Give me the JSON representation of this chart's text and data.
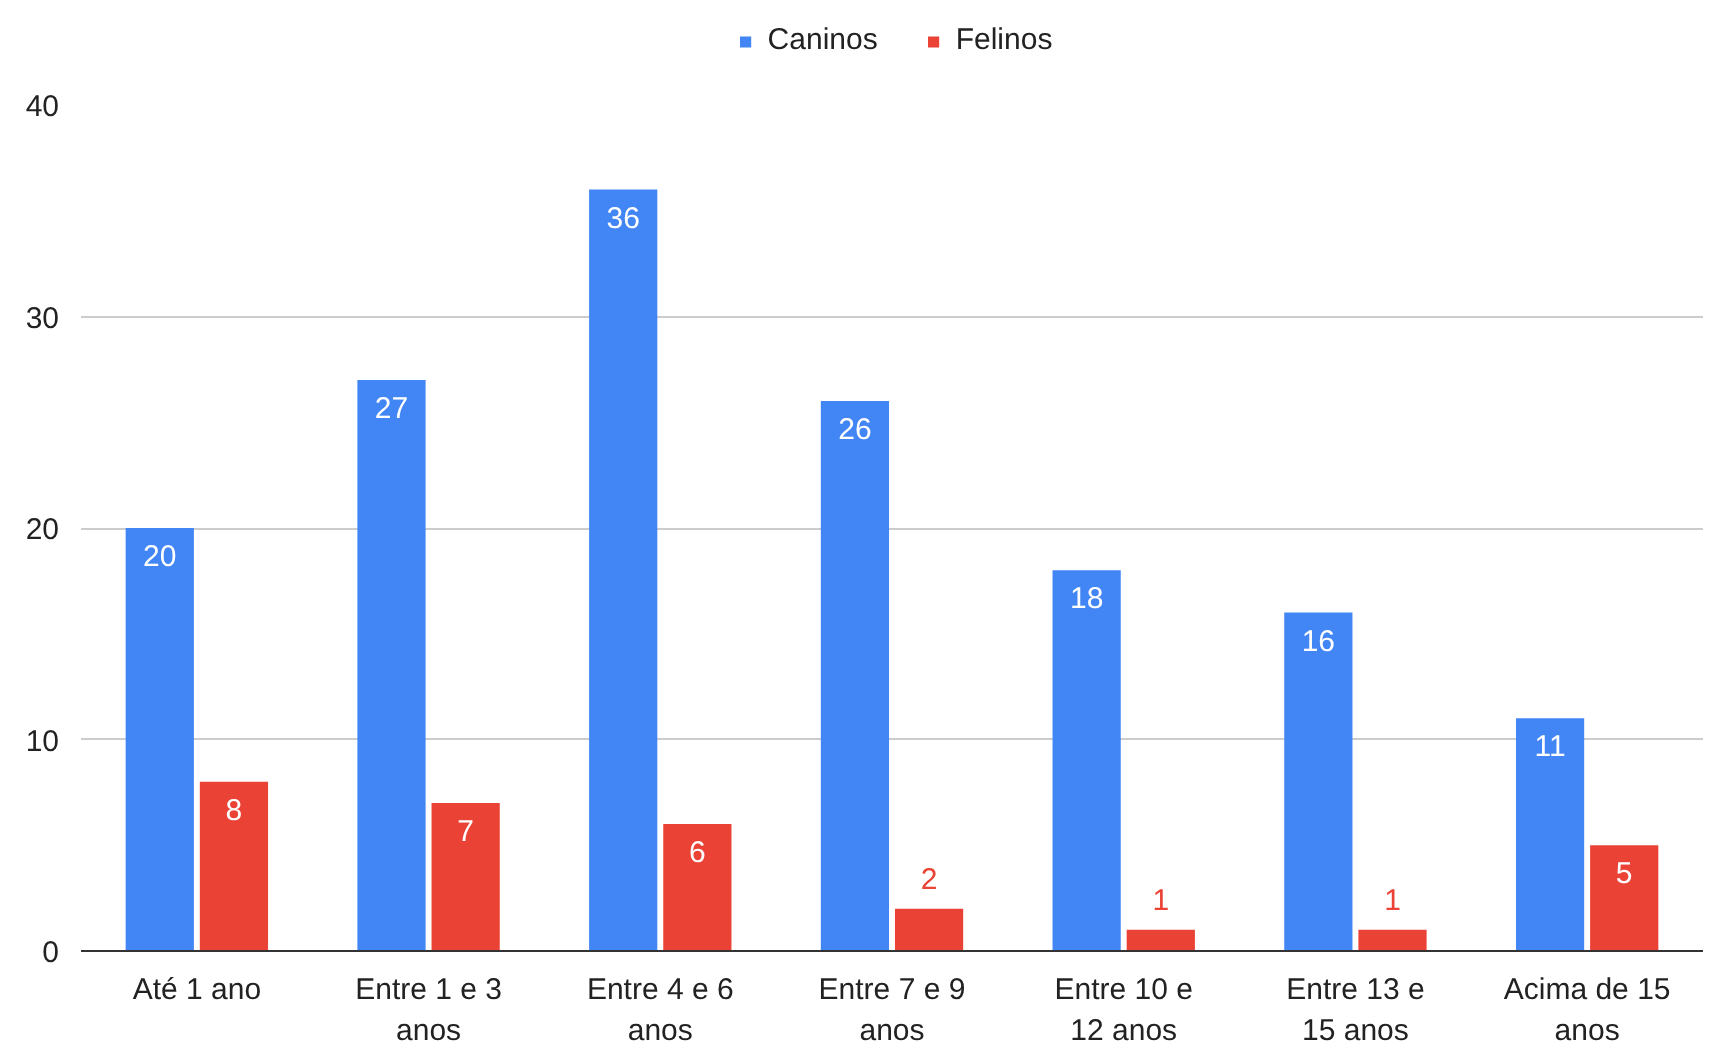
{
  "chart_data": {
    "type": "bar",
    "categories": [
      "Até 1 ano",
      "Entre 1 e 3 anos",
      "Entre 4 e 6 anos",
      "Entre 7 e 9 anos",
      "Entre 10 e 12 anos",
      "Entre 13 e 15 anos",
      "Acima de 15 anos"
    ],
    "series": [
      {
        "name": "Caninos",
        "color": "#4285f4",
        "values": [
          20,
          27,
          36,
          26,
          18,
          16,
          11
        ]
      },
      {
        "name": "Felinos",
        "color": "#ea4335",
        "values": [
          8,
          7,
          6,
          2,
          1,
          1,
          5
        ]
      }
    ],
    "ylim": [
      0,
      40
    ],
    "yticks": [
      0,
      10,
      20,
      30,
      40
    ],
    "grid": "y",
    "legend": "top",
    "data_labels": true
  }
}
